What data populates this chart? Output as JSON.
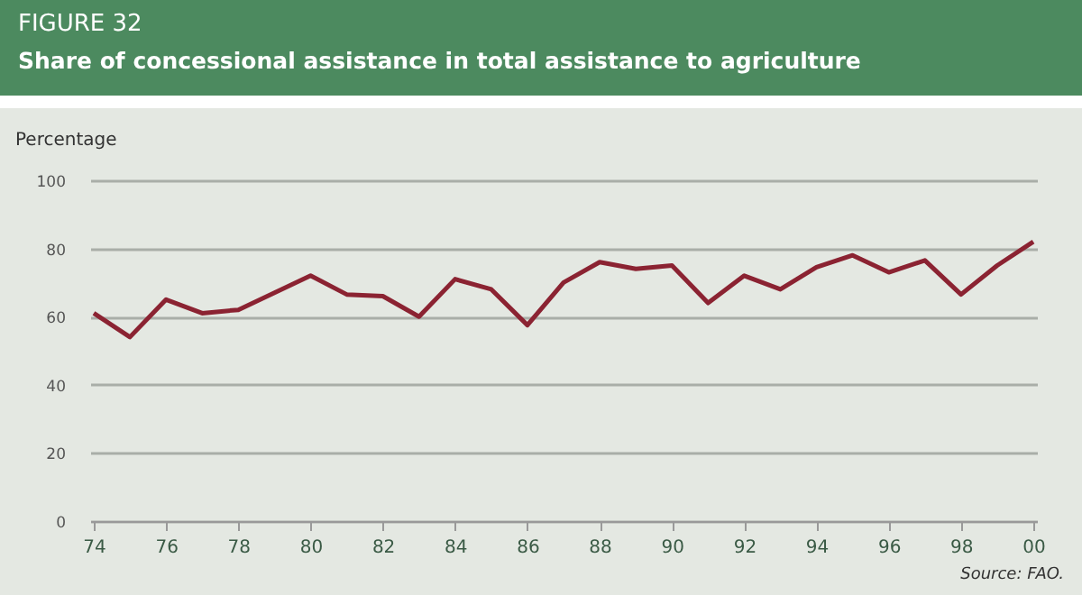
{
  "chart_data": {
    "type": "line",
    "subtitle": "FIGURE 32",
    "title": "Share of concessional assistance in total assistance to agriculture",
    "ylabel": "Percentage",
    "categories": [
      "74",
      null,
      "76",
      null,
      "78",
      null,
      "80",
      null,
      "82",
      null,
      "84",
      null,
      "86",
      null,
      "88",
      null,
      "90",
      null,
      "92",
      null,
      "94",
      null,
      "96",
      null,
      "98",
      null,
      "00"
    ],
    "series": [
      {
        "color": "#8b2332",
        "values": [
          61,
          54,
          65,
          61,
          62,
          67,
          72,
          66.5,
          66,
          60,
          71,
          68,
          57.5,
          70,
          76,
          74,
          75,
          64,
          72,
          68,
          74.5,
          78,
          73,
          76.5,
          66.5,
          75,
          82
        ]
      }
    ],
    "ylim": [
      0,
      100
    ],
    "yticks": [
      0,
      20,
      40,
      60,
      80,
      100
    ],
    "grid": "y",
    "legend": false,
    "annotations": [
      "Source: FAO."
    ]
  }
}
